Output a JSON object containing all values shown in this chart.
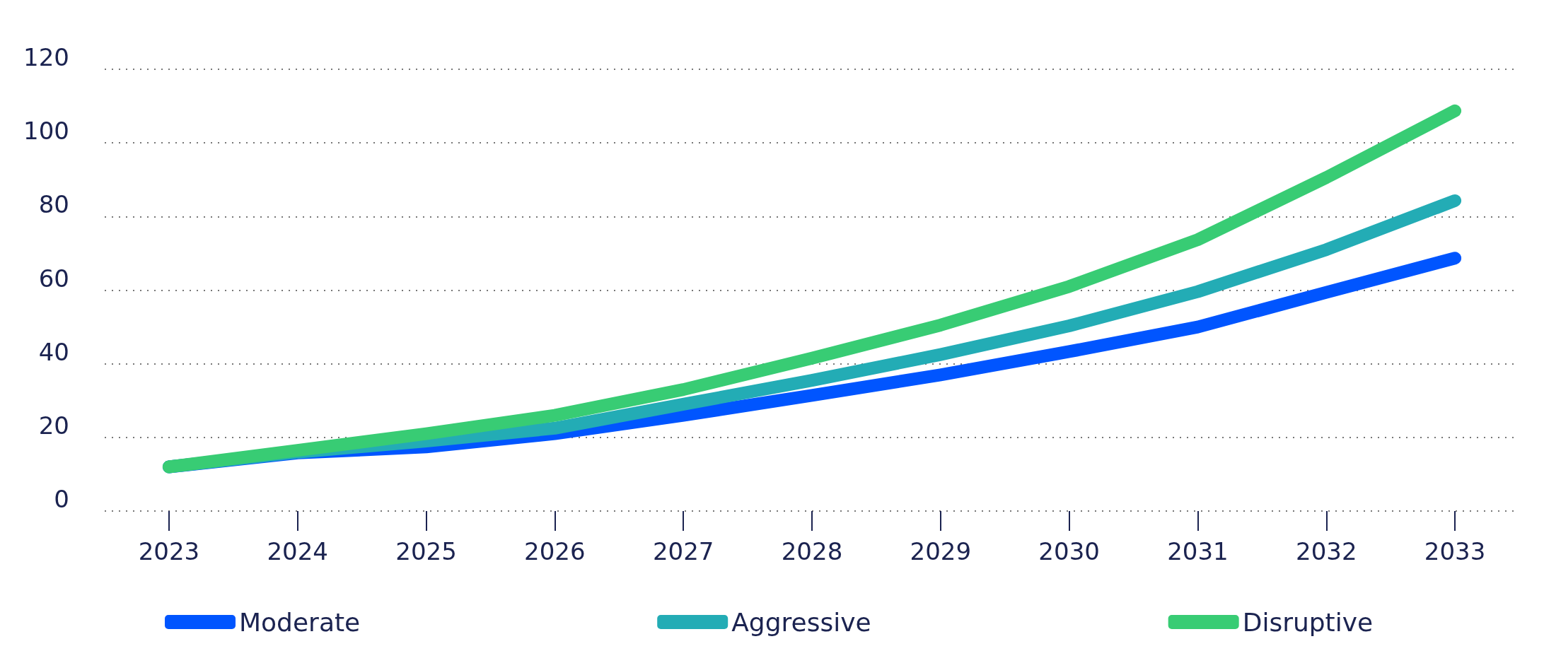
{
  "chart_data": {
    "type": "line",
    "categories": [
      "2023",
      "2024",
      "2025",
      "2026",
      "2027",
      "2028",
      "2029",
      "2030",
      "2031",
      "2032",
      "2033"
    ],
    "series": [
      {
        "name": "Moderate",
        "color": "#0055ff",
        "values": [
          12,
          15.8,
          17.4,
          21,
          26,
          31.4,
          37,
          43.3,
          50,
          59.4,
          68.7
        ]
      },
      {
        "name": "Aggressive",
        "color": "#23acb5",
        "values": [
          12,
          16,
          19,
          22.5,
          29,
          35.5,
          42.5,
          50.3,
          59.6,
          71,
          84.3
        ]
      },
      {
        "name": "Disruptive",
        "color": "#38cc74",
        "values": [
          12,
          16.5,
          21,
          26,
          33,
          41.5,
          50.5,
          61,
          73.7,
          90.6,
          108.7
        ]
      }
    ],
    "ylim": [
      0,
      120
    ],
    "yticks": [
      0,
      20,
      40,
      60,
      80,
      100,
      120
    ],
    "grid": "y",
    "legend": "bottom",
    "marker": "none",
    "line_style": "solid"
  }
}
